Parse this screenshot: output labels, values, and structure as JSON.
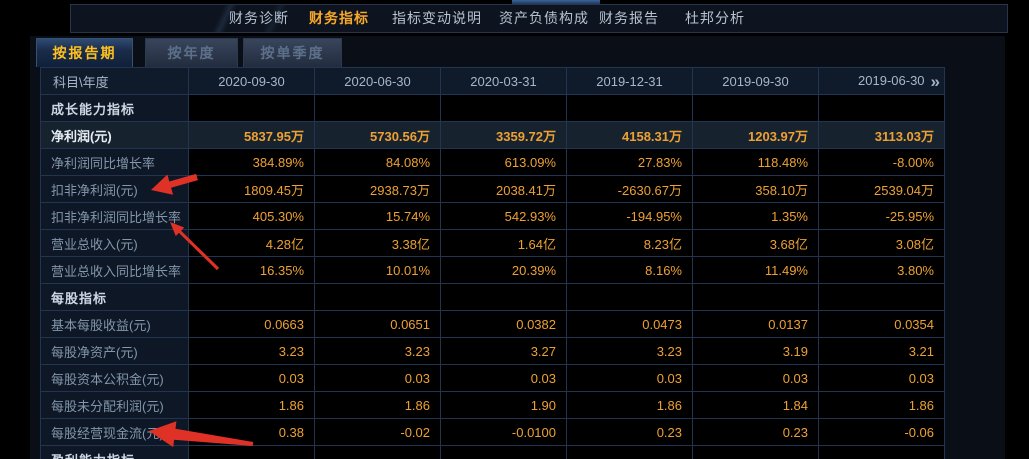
{
  "nav": {
    "items": [
      {
        "label": "财务诊断",
        "active": false
      },
      {
        "label": "财务指标",
        "active": true
      },
      {
        "label": "指标变动说明",
        "active": false
      },
      {
        "label": "资产负债构成",
        "active": false
      },
      {
        "label": "财务报告",
        "active": false
      },
      {
        "label": "杜邦分析",
        "active": false
      }
    ]
  },
  "tabs": [
    {
      "label": "按报告期",
      "active": true
    },
    {
      "label": "按年度",
      "active": false
    },
    {
      "label": "按单季度",
      "active": false
    }
  ],
  "table": {
    "corner_header": "科目\\年度",
    "periods": [
      "2020-09-30",
      "2020-06-30",
      "2020-03-31",
      "2019-12-31",
      "2019-09-30",
      "2019-06-30"
    ],
    "more_icon": "»",
    "rows": [
      {
        "type": "section",
        "label": "成长能力指标"
      },
      {
        "type": "data",
        "label": "净利润(元)",
        "highlight": true,
        "values": [
          "5837.95万",
          "5730.56万",
          "3359.72万",
          "4158.31万",
          "1203.97万",
          "3113.03万"
        ]
      },
      {
        "type": "data",
        "label": "净利润同比增长率",
        "values": [
          "384.89%",
          "84.08%",
          "613.09%",
          "27.83%",
          "118.48%",
          "-8.00%"
        ]
      },
      {
        "type": "data",
        "label": "扣非净利润(元)",
        "values": [
          "1809.45万",
          "2938.73万",
          "2038.41万",
          "-2630.67万",
          "358.10万",
          "2539.04万"
        ]
      },
      {
        "type": "data",
        "label": "扣非净利润同比增长率",
        "values": [
          "405.30%",
          "15.74%",
          "542.93%",
          "-194.95%",
          "1.35%",
          "-25.95%"
        ]
      },
      {
        "type": "data",
        "label": "营业总收入(元)",
        "values": [
          "4.28亿",
          "3.38亿",
          "1.64亿",
          "8.23亿",
          "3.68亿",
          "3.08亿"
        ]
      },
      {
        "type": "data",
        "label": "营业总收入同比增长率",
        "values": [
          "16.35%",
          "10.01%",
          "20.39%",
          "8.16%",
          "11.49%",
          "3.80%"
        ]
      },
      {
        "type": "section",
        "label": "每股指标"
      },
      {
        "type": "data",
        "label": "基本每股收益(元)",
        "values": [
          "0.0663",
          "0.0651",
          "0.0382",
          "0.0473",
          "0.0137",
          "0.0354"
        ]
      },
      {
        "type": "data",
        "label": "每股净资产(元)",
        "values": [
          "3.23",
          "3.23",
          "3.27",
          "3.23",
          "3.19",
          "3.21"
        ]
      },
      {
        "type": "data",
        "label": "每股资本公积金(元)",
        "values": [
          "0.03",
          "0.03",
          "0.03",
          "0.03",
          "0.03",
          "0.03"
        ]
      },
      {
        "type": "data",
        "label": "每股未分配利润(元)",
        "values": [
          "1.86",
          "1.86",
          "1.90",
          "1.86",
          "1.84",
          "1.86"
        ]
      },
      {
        "type": "data",
        "label": "每股经营现金流(元)",
        "values": [
          "0.38",
          "-0.02",
          "-0.0100",
          "0.23",
          "0.23",
          "-0.06"
        ]
      },
      {
        "type": "section",
        "label": "盈利能力指标"
      }
    ]
  },
  "colors": {
    "nav_active": "#f7a829",
    "tab_active_text": "#ffc11e",
    "value_color": "#eea133",
    "table_border": "#223450",
    "arrow_color": "#e03126"
  }
}
